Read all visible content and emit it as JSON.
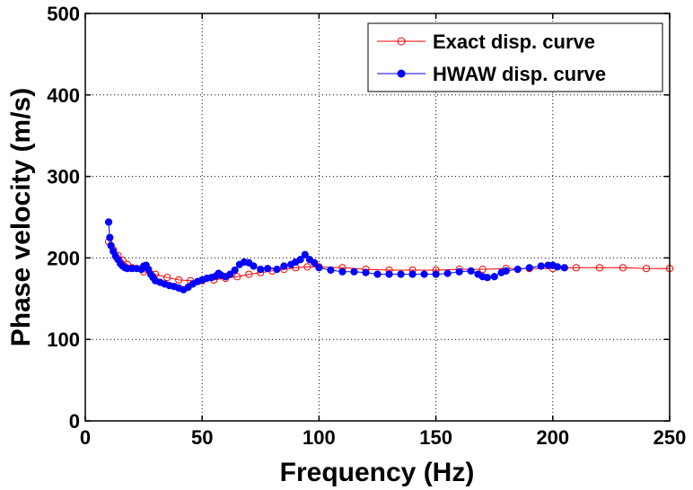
{
  "chart_data": {
    "type": "line",
    "title": "",
    "xlabel": "Frequency (Hz)",
    "ylabel": "Phase velocity (m/s)",
    "xlim": [
      0,
      250
    ],
    "ylim": [
      0,
      500
    ],
    "xticks": [
      "0",
      "50",
      "100",
      "150",
      "200",
      "250"
    ],
    "yticks": [
      "0",
      "100",
      "200",
      "300",
      "400",
      "500"
    ],
    "grid": true,
    "legend_position": "top-right",
    "series": [
      {
        "name": "Exact disp. curve",
        "color": "#ff0000",
        "marker": "open-circle",
        "x": [
          10,
          12,
          14,
          16,
          18,
          20,
          25,
          30,
          35,
          40,
          45,
          50,
          55,
          60,
          65,
          70,
          75,
          80,
          85,
          90,
          95,
          100,
          110,
          120,
          130,
          140,
          150,
          160,
          170,
          180,
          190,
          200,
          210,
          220,
          230,
          240,
          250
        ],
        "y": [
          220,
          210,
          203,
          197,
          192,
          188,
          183,
          180,
          176,
          173,
          172,
          172,
          173,
          175,
          177,
          180,
          182,
          184,
          186,
          188,
          189,
          189,
          188,
          186,
          185,
          185,
          185,
          186,
          186,
          187,
          187,
          187,
          188,
          188,
          188,
          187,
          187
        ]
      },
      {
        "name": "HWAW disp. curve",
        "color": "#0000ff",
        "marker": "filled-circle",
        "x": [
          10,
          10.5,
          11,
          12,
          13,
          14,
          15,
          16,
          17,
          18,
          20,
          22,
          24,
          25,
          26,
          27,
          28,
          29,
          30,
          32,
          34,
          36,
          38,
          40,
          42,
          44,
          46,
          48,
          50,
          52,
          54,
          56,
          57,
          58,
          60,
          62,
          64,
          66,
          68,
          70,
          72,
          75,
          78,
          82,
          85,
          88,
          90,
          92,
          94,
          96,
          98,
          100,
          105,
          110,
          115,
          120,
          125,
          130,
          135,
          140,
          145,
          150,
          155,
          160,
          165,
          168,
          170,
          172,
          175,
          178,
          180,
          185,
          190,
          195,
          198,
          200,
          202,
          205
        ],
        "y": [
          244,
          225,
          215,
          208,
          202,
          198,
          193,
          190,
          188,
          187,
          187,
          187,
          186,
          190,
          191,
          186,
          180,
          176,
          172,
          170,
          168,
          166,
          165,
          163,
          161,
          164,
          168,
          171,
          173,
          175,
          176,
          178,
          181,
          179,
          177,
          180,
          185,
          192,
          195,
          194,
          190,
          186,
          187,
          186,
          190,
          192,
          195,
          198,
          204,
          198,
          194,
          188,
          185,
          183,
          183,
          182,
          180,
          180,
          180,
          180,
          180,
          180,
          181,
          183,
          184,
          180,
          177,
          176,
          177,
          182,
          184,
          186,
          188,
          190,
          191,
          191,
          189,
          188
        ]
      }
    ]
  }
}
